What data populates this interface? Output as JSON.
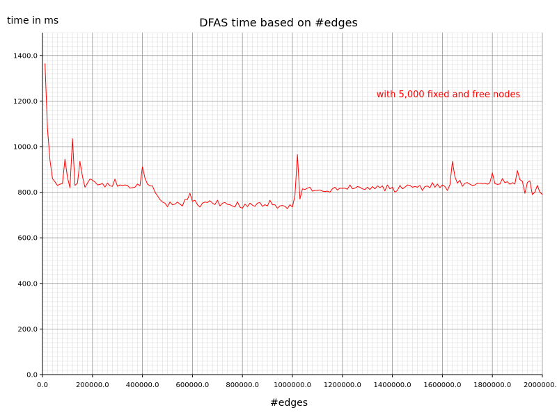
{
  "chart_data": {
    "type": "line",
    "title": "DFAS time based on #edges",
    "xlabel": "#edges",
    "ylabel": "time in ms",
    "xlim": [
      0,
      2000000
    ],
    "ylim": [
      0,
      1500
    ],
    "x_ticks": [
      0,
      200000,
      400000,
      600000,
      800000,
      1000000,
      1200000,
      1400000,
      1600000,
      1800000,
      2000000
    ],
    "x_tick_labels": [
      "0.0",
      "200000.0",
      "400000.0",
      "600000.0",
      "800000.0",
      "1000000.0",
      "1200000.0",
      "1400000.0",
      "1600000.0",
      "1800000.0",
      "2000000.0"
    ],
    "y_ticks": [
      0,
      200,
      400,
      600,
      800,
      1000,
      1200,
      1400
    ],
    "y_tick_labels": [
      "0.0",
      "200.0",
      "400.0",
      "600.0",
      "800.0",
      "1000.0",
      "1200.0",
      "1400.0"
    ],
    "grid": true,
    "annotation": "with 5,000 fixed and free nodes",
    "colors": {
      "series": "#ff0000",
      "annotation": "#ff0000",
      "grid_major": "#999999",
      "grid_minor": "#dddddd",
      "axis": "#000000"
    },
    "series": [
      {
        "x": [
          10000,
          20000,
          30000,
          40000,
          50000,
          60000,
          70000,
          80000,
          90000,
          100000,
          110000,
          120000,
          130000,
          140000,
          150000,
          160000,
          170000,
          180000,
          190000,
          200000,
          210000,
          220000,
          230000,
          240000,
          250000,
          260000,
          270000,
          280000,
          290000,
          300000,
          310000,
          320000,
          330000,
          340000,
          350000,
          360000,
          370000,
          380000,
          390000,
          400000,
          410000,
          420000,
          430000,
          440000,
          450000,
          460000,
          470000,
          480000,
          490000,
          500000,
          510000,
          520000,
          530000,
          540000,
          550000,
          560000,
          570000,
          580000,
          590000,
          600000,
          610000,
          620000,
          630000,
          640000,
          650000,
          660000,
          670000,
          680000,
          690000,
          700000,
          710000,
          720000,
          730000,
          740000,
          750000,
          760000,
          770000,
          780000,
          790000,
          800000,
          810000,
          820000,
          830000,
          840000,
          850000,
          860000,
          870000,
          880000,
          890000,
          900000,
          910000,
          920000,
          930000,
          940000,
          950000,
          960000,
          970000,
          980000,
          990000,
          1000000,
          1010000,
          1020000,
          1030000,
          1040000,
          1050000,
          1060000,
          1070000,
          1080000,
          1090000,
          1100000,
          1110000,
          1120000,
          1130000,
          1140000,
          1150000,
          1160000,
          1170000,
          1180000,
          1190000,
          1200000,
          1210000,
          1220000,
          1230000,
          1240000,
          1250000,
          1260000,
          1270000,
          1280000,
          1290000,
          1300000,
          1310000,
          1320000,
          1330000,
          1340000,
          1350000,
          1360000,
          1370000,
          1380000,
          1390000,
          1400000,
          1410000,
          1420000,
          1430000,
          1440000,
          1450000,
          1460000,
          1470000,
          1480000,
          1490000,
          1500000,
          1510000,
          1520000,
          1530000,
          1540000,
          1550000,
          1560000,
          1570000,
          1580000,
          1590000,
          1600000,
          1610000,
          1620000,
          1630000,
          1640000,
          1650000,
          1660000,
          1670000,
          1680000,
          1690000,
          1700000,
          1710000,
          1720000,
          1730000,
          1740000,
          1750000,
          1760000,
          1770000,
          1780000,
          1790000,
          1800000,
          1810000,
          1820000,
          1830000,
          1840000,
          1850000,
          1860000,
          1870000,
          1880000,
          1890000,
          1900000,
          1910000,
          1920000,
          1930000,
          1940000,
          1950000,
          1960000,
          1970000,
          1980000,
          1990000,
          2000000
        ],
        "y": [
          1365,
          1080,
          940,
          860,
          845,
          830,
          835,
          838,
          945,
          865,
          820,
          1035,
          830,
          840,
          935,
          870,
          822,
          840,
          858,
          853,
          845,
          832,
          834,
          838,
          823,
          840,
          828,
          826,
          858,
          826,
          832,
          830,
          832,
          830,
          818,
          820,
          822,
          836,
          828,
          912,
          862,
          836,
          828,
          828,
          800,
          785,
          768,
          757,
          752,
          737,
          757,
          745,
          748,
          757,
          748,
          740,
          768,
          768,
          795,
          760,
          765,
          745,
          735,
          752,
          757,
          755,
          763,
          752,
          746,
          765,
          740,
          752,
          755,
          747,
          745,
          740,
          735,
          758,
          735,
          730,
          748,
          737,
          752,
          743,
          738,
          752,
          755,
          738,
          745,
          740,
          765,
          745,
          745,
          730,
          740,
          742,
          738,
          728,
          745,
          735,
          785,
          965,
          770,
          815,
          812,
          818,
          822,
          805,
          808,
          808,
          810,
          805,
          803,
          805,
          800,
          815,
          822,
          810,
          818,
          817,
          818,
          813,
          832,
          815,
          818,
          825,
          822,
          815,
          812,
          822,
          812,
          825,
          815,
          828,
          820,
          828,
          806,
          832,
          815,
          822,
          800,
          808,
          830,
          815,
          822,
          832,
          830,
          822,
          825,
          822,
          830,
          808,
          825,
          827,
          820,
          842,
          822,
          836,
          820,
          832,
          825,
          808,
          833,
          935,
          868,
          840,
          852,
          826,
          840,
          842,
          835,
          830,
          832,
          840,
          840,
          838,
          840,
          835,
          842,
          885,
          838,
          834,
          836,
          860,
          842,
          846,
          835,
          842,
          836,
          895,
          855,
          848,
          795,
          843,
          850,
          790,
          800,
          830,
          800,
          790
        ]
      }
    ]
  }
}
